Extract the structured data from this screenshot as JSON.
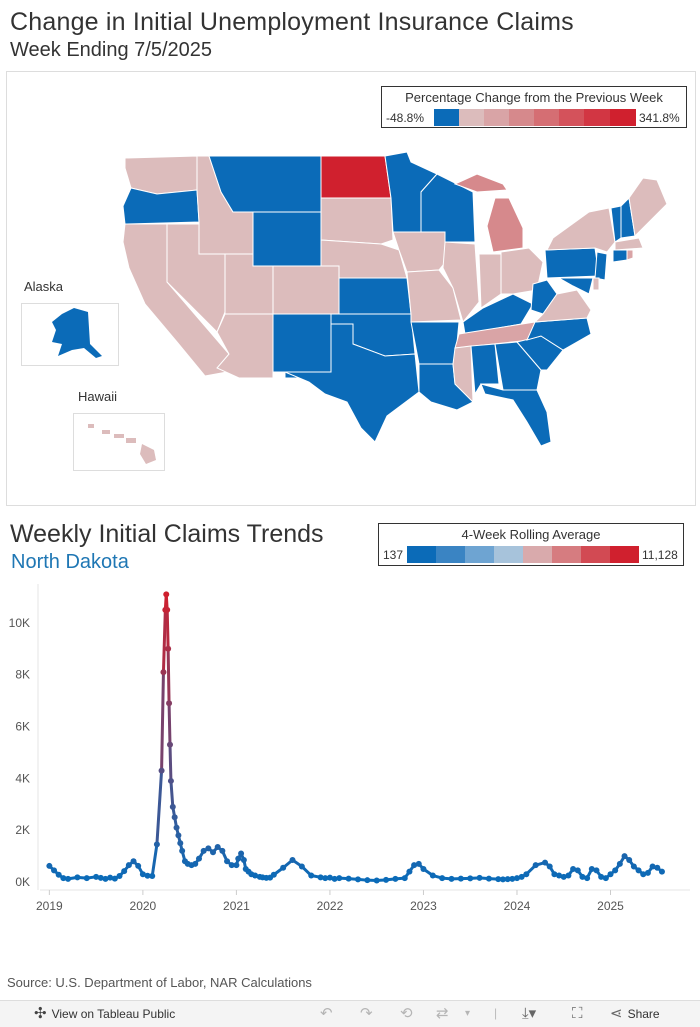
{
  "header": {
    "title": "Change in Initial Unemployment Insurance Claims",
    "subtitle": "Week Ending 7/5/2025"
  },
  "map_legend": {
    "title": "Percentage Change from the Previous Week",
    "low": "-48.8%",
    "high": "341.8%",
    "colors": [
      "#0b6bb8",
      "#dcbcbc",
      "#d9a4a6",
      "#d6898c",
      "#d56e73",
      "#d4525b",
      "#d23643",
      "#d0202e"
    ]
  },
  "insets": {
    "alaska_label": "Alaska",
    "hawaii_label": "Hawaii"
  },
  "trend": {
    "title": "Weekly Initial Claims Trends",
    "state": "North Dakota",
    "legend": {
      "title": "4-Week Rolling Average",
      "low": "137",
      "high": "11,128",
      "colors": [
        "#0b6bb8",
        "#3a84c3",
        "#6ea4d2",
        "#a7c3db",
        "#d9aaac",
        "#d67c80",
        "#d24a53",
        "#d0202e"
      ]
    }
  },
  "chart_data": {
    "type": "line",
    "title": "Weekly Initial Claims Trends",
    "subtitle": "North Dakota",
    "xlabel": "",
    "ylabel": "",
    "x_ticks": [
      "2019",
      "2020",
      "2021",
      "2022",
      "2023",
      "2024",
      "2025"
    ],
    "y_ticks": [
      "0K",
      "2K",
      "4K",
      "6K",
      "8K",
      "10K"
    ],
    "ylim": [
      0,
      11500
    ],
    "xlim": [
      2018.9,
      2025.85
    ],
    "x": [
      2019.0,
      2019.05,
      2019.1,
      2019.15,
      2019.2,
      2019.3,
      2019.4,
      2019.5,
      2019.55,
      2019.6,
      2019.65,
      2019.7,
      2019.75,
      2019.8,
      2019.85,
      2019.9,
      2019.95,
      2020.0,
      2020.05,
      2020.1,
      2020.15,
      2020.2,
      2020.22,
      2020.24,
      2020.25,
      2020.26,
      2020.27,
      2020.28,
      2020.29,
      2020.3,
      2020.32,
      2020.34,
      2020.36,
      2020.38,
      2020.4,
      2020.42,
      2020.45,
      2020.48,
      2020.52,
      2020.56,
      2020.6,
      2020.65,
      2020.7,
      2020.75,
      2020.8,
      2020.85,
      2020.9,
      2020.95,
      2021.0,
      2021.02,
      2021.05,
      2021.08,
      2021.1,
      2021.13,
      2021.16,
      2021.2,
      2021.25,
      2021.28,
      2021.32,
      2021.36,
      2021.4,
      2021.5,
      2021.6,
      2021.7,
      2021.8,
      2021.9,
      2021.95,
      2022.0,
      2022.05,
      2022.1,
      2022.2,
      2022.3,
      2022.4,
      2022.5,
      2022.6,
      2022.7,
      2022.8,
      2022.85,
      2022.9,
      2022.95,
      2023.0,
      2023.1,
      2023.2,
      2023.3,
      2023.4,
      2023.5,
      2023.6,
      2023.7,
      2023.8,
      2023.85,
      2023.9,
      2023.95,
      2024.0,
      2024.05,
      2024.1,
      2024.2,
      2024.3,
      2024.35,
      2024.4,
      2024.45,
      2024.5,
      2024.55,
      2024.6,
      2024.65,
      2024.7,
      2024.75,
      2024.8,
      2024.85,
      2024.9,
      2024.95,
      2025.0,
      2025.05,
      2025.1,
      2025.15,
      2025.2,
      2025.25,
      2025.3,
      2025.35,
      2025.4,
      2025.45,
      2025.5,
      2025.55
    ],
    "values": [
      620,
      450,
      280,
      150,
      120,
      180,
      150,
      200,
      160,
      120,
      170,
      130,
      230,
      420,
      650,
      800,
      620,
      300,
      240,
      230,
      1450,
      4300,
      8100,
      10500,
      11100,
      10500,
      9000,
      6900,
      5300,
      3900,
      2900,
      2500,
      2100,
      1800,
      1500,
      1200,
      800,
      700,
      650,
      700,
      900,
      1200,
      1300,
      1150,
      1350,
      1200,
      800,
      650,
      650,
      900,
      1100,
      850,
      500,
      400,
      300,
      250,
      200,
      180,
      160,
      170,
      280,
      550,
      850,
      600,
      250,
      180,
      150,
      170,
      120,
      150,
      130,
      100,
      70,
      60,
      80,
      120,
      150,
      400,
      650,
      700,
      500,
      250,
      150,
      120,
      130,
      140,
      160,
      130,
      110,
      100,
      110,
      120,
      150,
      200,
      300,
      650,
      750,
      600,
      300,
      250,
      200,
      250,
      500,
      450,
      200,
      150,
      500,
      450,
      200,
      150,
      300,
      450,
      700,
      1000,
      850,
      600,
      450,
      300,
      350,
      600,
      550,
      400
    ]
  },
  "source": "Source: U.S. Department of Labor, NAR Calculations",
  "toolbar": {
    "view_label": "View on Tableau Public",
    "share_label": "Share"
  }
}
